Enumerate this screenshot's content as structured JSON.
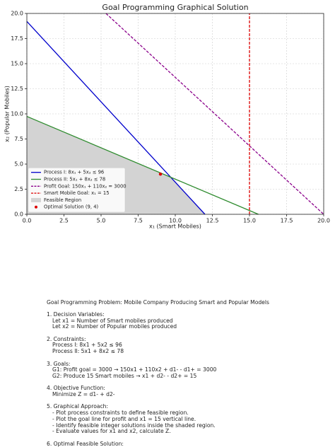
{
  "chart_data": {
    "type": "line",
    "title": "Goal Programming Graphical Solution",
    "xlabel": "x₁ (Smart Mobiles)",
    "ylabel": "x₂ (Popular Mobiles)",
    "xlim": [
      0,
      20
    ],
    "ylim": [
      0,
      20
    ],
    "xticks": [
      {
        "value": 0,
        "label": "0.0"
      },
      2.5,
      {
        "value": 5,
        "label": "5.0"
      },
      7.5,
      {
        "value": 10,
        "label": "10.0"
      },
      12.5,
      {
        "value": 15,
        "label": "15.0"
      },
      17.5,
      {
        "value": 20,
        "label": "20.0"
      }
    ],
    "yticks": [
      {
        "value": 0,
        "label": "0.0"
      },
      2.5,
      {
        "value": 5,
        "label": "5.0"
      },
      7.5,
      {
        "value": 10,
        "label": "10.0"
      },
      12.5,
      {
        "value": 15,
        "label": "15.0"
      },
      17.5,
      {
        "value": 20,
        "label": "20.0"
      }
    ],
    "grid": true,
    "legend": "lower left",
    "series": [
      {
        "name": "Process I: 8x₁ + 5x₂ ≤ 96",
        "kind": "line",
        "style": "solid",
        "color": "#0000cc",
        "x": [
          0,
          12
        ],
        "values": [
          19.2,
          0
        ]
      },
      {
        "name": "Process II: 5x₁ + 8x₂ ≤ 78",
        "kind": "line",
        "style": "solid",
        "color": "#2e8b2e",
        "x": [
          0,
          15.6
        ],
        "values": [
          9.75,
          0
        ]
      },
      {
        "name": "Profit Goal: 150x₁ + 110x₂ = 3000",
        "kind": "line",
        "style": "dashed",
        "color": "#8b008b",
        "x": [
          5.33,
          20
        ],
        "values": [
          20,
          0
        ]
      },
      {
        "name": "Smart Mobile Goal: x₁ = 15",
        "kind": "line",
        "style": "dashed",
        "color": "#dd0000",
        "x": [
          15,
          15
        ],
        "values": [
          0,
          20
        ]
      },
      {
        "name": "Feasible Region",
        "kind": "area",
        "color": "#d3d3d3",
        "x": [
          0,
          0,
          9.69,
          12
        ],
        "values": [
          0,
          9.75,
          3.69,
          0
        ]
      },
      {
        "name": "Optimal Solution (9, 4)",
        "kind": "point",
        "color": "#dd0000",
        "x": [
          9
        ],
        "values": [
          4
        ]
      }
    ]
  },
  "notes": {
    "title": "Goal Programming Problem: Mobile Company Producing Smart and Popular Models",
    "sections": [
      {
        "heading": "1. Decision Variables:",
        "lines": [
          "Let x1 = Number of Smart mobiles produced",
          "Let x2 = Number of Popular mobiles produced"
        ]
      },
      {
        "heading": "2. Constraints:",
        "lines": [
          "Process I: 8x1 + 5x2 ≤ 96",
          "Process II: 5x1 + 8x2 ≤ 78"
        ]
      },
      {
        "heading": "3. Goals:",
        "lines": [
          "G1: Profit goal = 3000 → 150x1 + 110x2 + d1- - d1+ = 3000",
          "G2: Produce 15 Smart mobiles → x1 + d2- - d2+ = 15"
        ]
      },
      {
        "heading": "4. Objective Function:",
        "lines": [
          "Minimize Z = d1- + d2-"
        ]
      },
      {
        "heading": "5. Graphical Approach:",
        "lines": [
          "- Plot process constraints to define feasible region.",
          "- Plot the goal line for profit and x1 = 15 vertical line.",
          "- Identify feasible integer solutions inside the shaded region.",
          "- Evaluate values for x1 and x2, calculate Z."
        ]
      },
      {
        "heading": "6. Optimal Feasible Solution:",
        "lines": []
      }
    ]
  }
}
